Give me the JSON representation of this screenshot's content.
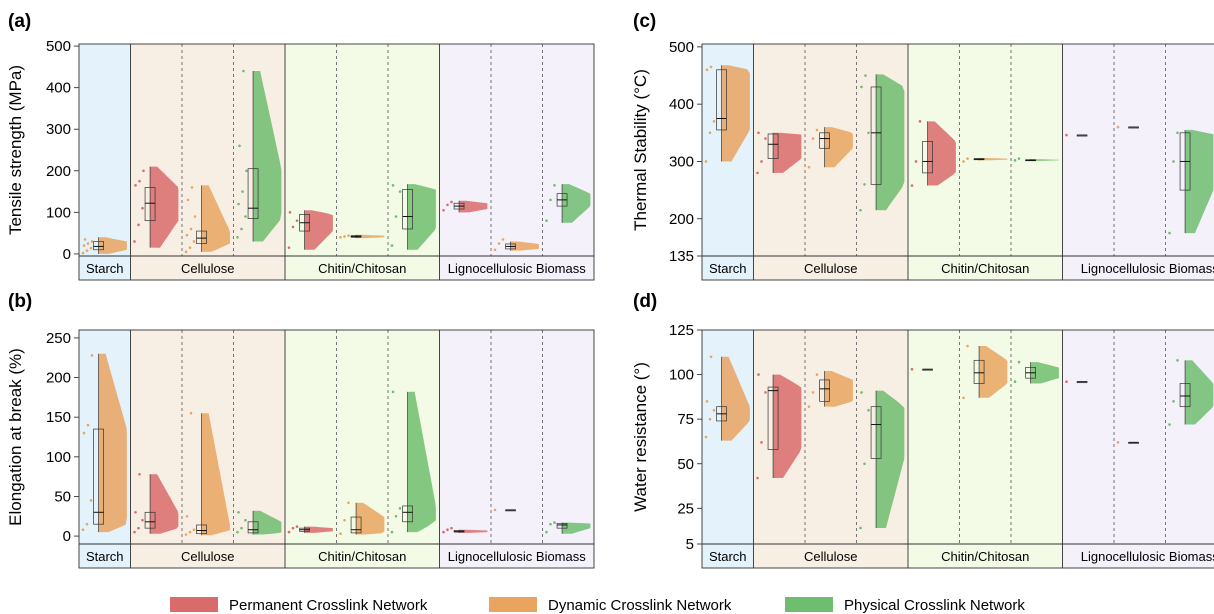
{
  "colors": {
    "permanent": "#d96b6b",
    "dynamic": "#e9a460",
    "physical": "#6fbd6f",
    "bg_starch": "#e3f2fb",
    "bg_cellulose": "#f8efe4",
    "bg_chitin": "#f3fbe6",
    "bg_ligno": "#f4f1fb"
  },
  "legend": {
    "items": [
      {
        "label": "Permanent Crosslink Network",
        "color": "#d96b6b"
      },
      {
        "label": "Dynamic Crosslink Network",
        "color": "#e9a460"
      },
      {
        "label": "Physical Crosslink Network",
        "color": "#6fbd6f"
      }
    ]
  },
  "chart_data": [
    {
      "type": "violin",
      "panel": "(a)",
      "ylabel": "Tensile strength (MPa)",
      "ylim": [
        -5,
        505
      ],
      "yticks": [
        0,
        100,
        200,
        300,
        400,
        500
      ],
      "groups": [
        "Starch",
        "Cellulose",
        "Chitin/Chitosan",
        "Lignocellulosic Biomass"
      ],
      "series": [
        {
          "group": "Starch",
          "network": "dynamic",
          "min": 0,
          "q1": 10,
          "median": 18,
          "q3": 30,
          "max": 40,
          "points": [
            2,
            8,
            14,
            20,
            25,
            30,
            35
          ]
        },
        {
          "group": "Cellulose",
          "network": "permanent",
          "min": 15,
          "q1": 80,
          "median": 122,
          "q3": 160,
          "max": 210,
          "points": [
            30,
            70,
            110,
            165,
            175,
            200
          ]
        },
        {
          "group": "Cellulose",
          "network": "dynamic",
          "min": 5,
          "q1": 25,
          "median": 38,
          "q3": 55,
          "max": 165,
          "points": [
            5,
            15,
            30,
            45,
            60,
            90,
            130,
            160
          ]
        },
        {
          "group": "Cellulose",
          "network": "physical",
          "min": 30,
          "q1": 85,
          "median": 110,
          "q3": 205,
          "max": 440,
          "points": [
            40,
            60,
            90,
            120,
            150,
            200,
            260,
            440
          ]
        },
        {
          "group": "Chitin/Chitosan",
          "network": "permanent",
          "min": 10,
          "q1": 55,
          "median": 75,
          "q3": 95,
          "max": 105,
          "points": [
            15,
            65,
            80,
            100
          ]
        },
        {
          "group": "Chitin/Chitosan",
          "network": "dynamic",
          "min": 38,
          "q1": 40,
          "median": 42,
          "q3": 44,
          "max": 46,
          "points": [
            40,
            42,
            44
          ]
        },
        {
          "group": "Chitin/Chitosan",
          "network": "physical",
          "min": 10,
          "q1": 60,
          "median": 90,
          "q3": 155,
          "max": 168,
          "points": [
            20,
            90,
            150,
            165
          ]
        },
        {
          "group": "Lignocellulosic Biomass",
          "network": "permanent",
          "min": 100,
          "q1": 108,
          "median": 115,
          "q3": 122,
          "max": 128,
          "points": [
            105,
            118,
            125
          ]
        },
        {
          "group": "Lignocellulosic Biomass",
          "network": "dynamic",
          "min": 8,
          "q1": 12,
          "median": 18,
          "q3": 24,
          "max": 30,
          "points": [
            10,
            25,
            35
          ]
        },
        {
          "group": "Lignocellulosic Biomass",
          "network": "physical",
          "min": 75,
          "q1": 115,
          "median": 130,
          "q3": 145,
          "max": 168,
          "points": [
            80,
            130,
            165
          ]
        }
      ]
    },
    {
      "type": "violin",
      "panel": "(b)",
      "ylabel": "Elongation at break (%)",
      "ylim": [
        -10,
        260
      ],
      "yticks": [
        0,
        50,
        100,
        150,
        200,
        250
      ],
      "groups": [
        "Starch",
        "Cellulose",
        "Chitin/Chitosan",
        "Lignocellulosic Biomass"
      ],
      "series": [
        {
          "group": "Starch",
          "network": "dynamic",
          "min": 5,
          "q1": 15,
          "median": 30,
          "q3": 135,
          "max": 230,
          "points": [
            8,
            15,
            45,
            130,
            140,
            228
          ]
        },
        {
          "group": "Cellulose",
          "network": "permanent",
          "min": 3,
          "q1": 10,
          "median": 18,
          "q3": 30,
          "max": 78,
          "points": [
            5,
            10,
            20,
            30,
            78
          ]
        },
        {
          "group": "Cellulose",
          "network": "dynamic",
          "min": 1,
          "q1": 3,
          "median": 7,
          "q3": 14,
          "max": 155,
          "points": [
            2,
            5,
            8,
            25,
            155
          ]
        },
        {
          "group": "Cellulose",
          "network": "physical",
          "min": 2,
          "q1": 4,
          "median": 8,
          "q3": 18,
          "max": 32,
          "points": [
            5,
            10,
            20,
            30
          ]
        },
        {
          "group": "Chitin/Chitosan",
          "network": "permanent",
          "min": 4,
          "q1": 6,
          "median": 8,
          "q3": 10,
          "max": 12,
          "points": [
            5,
            10,
            12
          ]
        },
        {
          "group": "Chitin/Chitosan",
          "network": "dynamic",
          "min": 2,
          "q1": 4,
          "median": 8,
          "q3": 24,
          "max": 42,
          "points": [
            3,
            20,
            42
          ]
        },
        {
          "group": "Chitin/Chitosan",
          "network": "physical",
          "min": 5,
          "q1": 18,
          "median": 30,
          "q3": 38,
          "max": 182,
          "points": [
            5,
            25,
            35,
            182
          ]
        },
        {
          "group": "Lignocellulosic Biomass",
          "network": "permanent",
          "min": 4,
          "q1": 5,
          "median": 6,
          "q3": 7,
          "max": 8,
          "points": [
            5,
            8,
            10
          ]
        },
        {
          "group": "Lignocellulosic Biomass",
          "network": "dynamic",
          "min": 33,
          "q1": 33,
          "median": 33,
          "q3": 33,
          "max": 33,
          "points": [
            33
          ]
        },
        {
          "group": "Lignocellulosic Biomass",
          "network": "physical",
          "min": 3,
          "q1": 10,
          "median": 14,
          "q3": 16,
          "max": 17,
          "points": [
            5,
            15,
            17
          ]
        }
      ]
    },
    {
      "type": "violin",
      "panel": "(c)",
      "ylabel": "Thermal Stability (°C)",
      "ylim": [
        135,
        505
      ],
      "yticks": [
        135,
        200,
        300,
        400,
        500
      ],
      "groups": [
        "Starch",
        "Cellulose",
        "Chitin/Chitosan",
        "Lignocellulosic Biomass"
      ],
      "series": [
        {
          "group": "Starch",
          "network": "dynamic",
          "min": 300,
          "q1": 355,
          "median": 375,
          "q3": 460,
          "max": 468,
          "points": [
            300,
            350,
            370,
            460,
            465
          ]
        },
        {
          "group": "Cellulose",
          "network": "permanent",
          "min": 280,
          "q1": 305,
          "median": 330,
          "q3": 348,
          "max": 350,
          "points": [
            280,
            300,
            340,
            350
          ]
        },
        {
          "group": "Cellulose",
          "network": "dynamic",
          "min": 290,
          "q1": 323,
          "median": 340,
          "q3": 350,
          "max": 360,
          "points": [
            290,
            340,
            355
          ]
        },
        {
          "group": "Cellulose",
          "network": "physical",
          "min": 215,
          "q1": 260,
          "median": 350,
          "q3": 430,
          "max": 452,
          "points": [
            215,
            260,
            350,
            430,
            450
          ]
        },
        {
          "group": "Chitin/Chitosan",
          "network": "permanent",
          "min": 258,
          "q1": 280,
          "median": 300,
          "q3": 335,
          "max": 370,
          "points": [
            258,
            300,
            370
          ]
        },
        {
          "group": "Chitin/Chitosan",
          "network": "dynamic",
          "min": 302,
          "q1": 303,
          "median": 304,
          "q3": 305,
          "max": 306,
          "points": [
            300,
            305
          ]
        },
        {
          "group": "Chitin/Chitosan",
          "network": "physical",
          "min": 301,
          "q1": 302,
          "median": 302,
          "q3": 303,
          "max": 304,
          "points": [
            302,
            305
          ]
        },
        {
          "group": "Lignocellulosic Biomass",
          "network": "permanent",
          "min": 346,
          "q1": 346,
          "median": 346,
          "q3": 346,
          "max": 346,
          "points": [
            346
          ]
        },
        {
          "group": "Lignocellulosic Biomass",
          "network": "dynamic",
          "min": 360,
          "q1": 360,
          "median": 360,
          "q3": 360,
          "max": 360,
          "points": [
            360
          ]
        },
        {
          "group": "Lignocellulosic Biomass",
          "network": "physical",
          "min": 175,
          "q1": 250,
          "median": 300,
          "q3": 350,
          "max": 355,
          "points": [
            175,
            300,
            350
          ]
        }
      ]
    },
    {
      "type": "violin",
      "panel": "(d)",
      "ylabel": "Water resistance (°)",
      "ylim": [
        5,
        125
      ],
      "yticks": [
        5,
        25,
        50,
        75,
        100,
        125
      ],
      "groups": [
        "Starch",
        "Cellulose",
        "Chitin/Chitosan",
        "Lignocellulosic Biomass"
      ],
      "series": [
        {
          "group": "Starch",
          "network": "dynamic",
          "min": 63,
          "q1": 74,
          "median": 78,
          "q3": 82,
          "max": 110,
          "points": [
            65,
            75,
            80,
            85,
            110
          ]
        },
        {
          "group": "Cellulose",
          "network": "permanent",
          "min": 42,
          "q1": 58,
          "median": 91,
          "q3": 93,
          "max": 100,
          "points": [
            42,
            62,
            90,
            100
          ]
        },
        {
          "group": "Cellulose",
          "network": "dynamic",
          "min": 82,
          "q1": 85,
          "median": 92,
          "q3": 97,
          "max": 102,
          "points": [
            82,
            90,
            100
          ]
        },
        {
          "group": "Cellulose",
          "network": "physical",
          "min": 14,
          "q1": 53,
          "median": 72,
          "q3": 82,
          "max": 91,
          "points": [
            14,
            50,
            80,
            90
          ]
        },
        {
          "group": "Chitin/Chitosan",
          "network": "permanent",
          "min": 103,
          "q1": 103,
          "median": 103,
          "q3": 103,
          "max": 103,
          "points": [
            103
          ]
        },
        {
          "group": "Chitin/Chitosan",
          "network": "dynamic",
          "min": 87,
          "q1": 95,
          "median": 101,
          "q3": 108,
          "max": 116,
          "points": [
            87,
            116
          ]
        },
        {
          "group": "Chitin/Chitosan",
          "network": "physical",
          "min": 95,
          "q1": 98,
          "median": 101,
          "q3": 104,
          "max": 107,
          "points": [
            96,
            107
          ]
        },
        {
          "group": "Lignocellulosic Biomass",
          "network": "permanent",
          "min": 96,
          "q1": 96,
          "median": 96,
          "q3": 96,
          "max": 96,
          "points": [
            96
          ]
        },
        {
          "group": "Lignocellulosic Biomass",
          "network": "dynamic",
          "min": 62,
          "q1": 62,
          "median": 62,
          "q3": 62,
          "max": 62,
          "points": [
            62
          ]
        },
        {
          "group": "Lignocellulosic Biomass",
          "network": "physical",
          "min": 72,
          "q1": 82,
          "median": 88,
          "q3": 95,
          "max": 108,
          "points": [
            72,
            85,
            108
          ]
        }
      ]
    }
  ]
}
